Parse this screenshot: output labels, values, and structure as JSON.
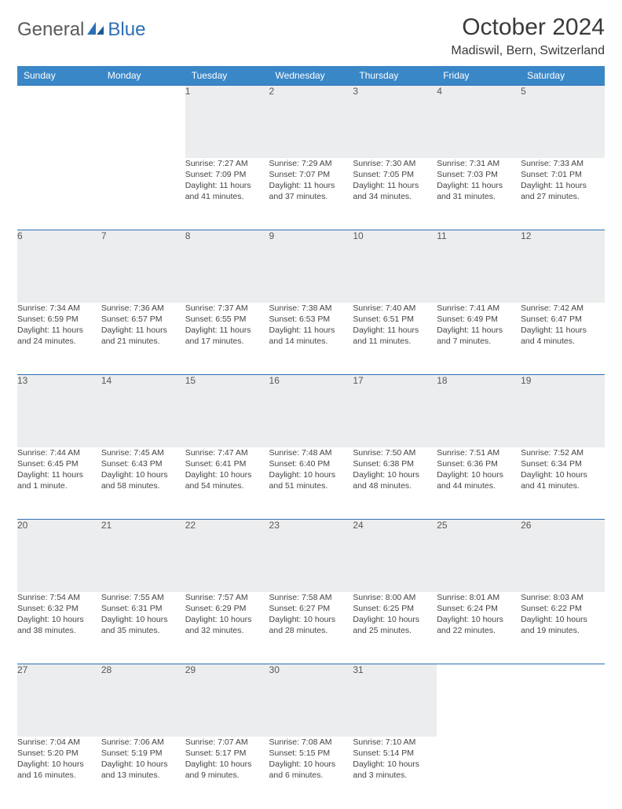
{
  "brand": {
    "part1": "General",
    "part2": "Blue"
  },
  "title": "October 2024",
  "location": "Madiswil, Bern, Switzerland",
  "colors": {
    "header_bg": "#3a87c7",
    "header_text": "#ffffff",
    "daynum_bg": "#ecedee",
    "rule": "#2d6fb5",
    "text": "#3a3a3a",
    "logo_gray": "#5a5a5c",
    "logo_blue": "#2d6fb5"
  },
  "weekdays": [
    "Sunday",
    "Monday",
    "Tuesday",
    "Wednesday",
    "Thursday",
    "Friday",
    "Saturday"
  ],
  "weeks": [
    [
      null,
      null,
      {
        "n": "1",
        "sr": "Sunrise: 7:27 AM",
        "ss": "Sunset: 7:09 PM",
        "d1": "Daylight: 11 hours",
        "d2": "and 41 minutes."
      },
      {
        "n": "2",
        "sr": "Sunrise: 7:29 AM",
        "ss": "Sunset: 7:07 PM",
        "d1": "Daylight: 11 hours",
        "d2": "and 37 minutes."
      },
      {
        "n": "3",
        "sr": "Sunrise: 7:30 AM",
        "ss": "Sunset: 7:05 PM",
        "d1": "Daylight: 11 hours",
        "d2": "and 34 minutes."
      },
      {
        "n": "4",
        "sr": "Sunrise: 7:31 AM",
        "ss": "Sunset: 7:03 PM",
        "d1": "Daylight: 11 hours",
        "d2": "and 31 minutes."
      },
      {
        "n": "5",
        "sr": "Sunrise: 7:33 AM",
        "ss": "Sunset: 7:01 PM",
        "d1": "Daylight: 11 hours",
        "d2": "and 27 minutes."
      }
    ],
    [
      {
        "n": "6",
        "sr": "Sunrise: 7:34 AM",
        "ss": "Sunset: 6:59 PM",
        "d1": "Daylight: 11 hours",
        "d2": "and 24 minutes."
      },
      {
        "n": "7",
        "sr": "Sunrise: 7:36 AM",
        "ss": "Sunset: 6:57 PM",
        "d1": "Daylight: 11 hours",
        "d2": "and 21 minutes."
      },
      {
        "n": "8",
        "sr": "Sunrise: 7:37 AM",
        "ss": "Sunset: 6:55 PM",
        "d1": "Daylight: 11 hours",
        "d2": "and 17 minutes."
      },
      {
        "n": "9",
        "sr": "Sunrise: 7:38 AM",
        "ss": "Sunset: 6:53 PM",
        "d1": "Daylight: 11 hours",
        "d2": "and 14 minutes."
      },
      {
        "n": "10",
        "sr": "Sunrise: 7:40 AM",
        "ss": "Sunset: 6:51 PM",
        "d1": "Daylight: 11 hours",
        "d2": "and 11 minutes."
      },
      {
        "n": "11",
        "sr": "Sunrise: 7:41 AM",
        "ss": "Sunset: 6:49 PM",
        "d1": "Daylight: 11 hours",
        "d2": "and 7 minutes."
      },
      {
        "n": "12",
        "sr": "Sunrise: 7:42 AM",
        "ss": "Sunset: 6:47 PM",
        "d1": "Daylight: 11 hours",
        "d2": "and 4 minutes."
      }
    ],
    [
      {
        "n": "13",
        "sr": "Sunrise: 7:44 AM",
        "ss": "Sunset: 6:45 PM",
        "d1": "Daylight: 11 hours",
        "d2": "and 1 minute."
      },
      {
        "n": "14",
        "sr": "Sunrise: 7:45 AM",
        "ss": "Sunset: 6:43 PM",
        "d1": "Daylight: 10 hours",
        "d2": "and 58 minutes."
      },
      {
        "n": "15",
        "sr": "Sunrise: 7:47 AM",
        "ss": "Sunset: 6:41 PM",
        "d1": "Daylight: 10 hours",
        "d2": "and 54 minutes."
      },
      {
        "n": "16",
        "sr": "Sunrise: 7:48 AM",
        "ss": "Sunset: 6:40 PM",
        "d1": "Daylight: 10 hours",
        "d2": "and 51 minutes."
      },
      {
        "n": "17",
        "sr": "Sunrise: 7:50 AM",
        "ss": "Sunset: 6:38 PM",
        "d1": "Daylight: 10 hours",
        "d2": "and 48 minutes."
      },
      {
        "n": "18",
        "sr": "Sunrise: 7:51 AM",
        "ss": "Sunset: 6:36 PM",
        "d1": "Daylight: 10 hours",
        "d2": "and 44 minutes."
      },
      {
        "n": "19",
        "sr": "Sunrise: 7:52 AM",
        "ss": "Sunset: 6:34 PM",
        "d1": "Daylight: 10 hours",
        "d2": "and 41 minutes."
      }
    ],
    [
      {
        "n": "20",
        "sr": "Sunrise: 7:54 AM",
        "ss": "Sunset: 6:32 PM",
        "d1": "Daylight: 10 hours",
        "d2": "and 38 minutes."
      },
      {
        "n": "21",
        "sr": "Sunrise: 7:55 AM",
        "ss": "Sunset: 6:31 PM",
        "d1": "Daylight: 10 hours",
        "d2": "and 35 minutes."
      },
      {
        "n": "22",
        "sr": "Sunrise: 7:57 AM",
        "ss": "Sunset: 6:29 PM",
        "d1": "Daylight: 10 hours",
        "d2": "and 32 minutes."
      },
      {
        "n": "23",
        "sr": "Sunrise: 7:58 AM",
        "ss": "Sunset: 6:27 PM",
        "d1": "Daylight: 10 hours",
        "d2": "and 28 minutes."
      },
      {
        "n": "24",
        "sr": "Sunrise: 8:00 AM",
        "ss": "Sunset: 6:25 PM",
        "d1": "Daylight: 10 hours",
        "d2": "and 25 minutes."
      },
      {
        "n": "25",
        "sr": "Sunrise: 8:01 AM",
        "ss": "Sunset: 6:24 PM",
        "d1": "Daylight: 10 hours",
        "d2": "and 22 minutes."
      },
      {
        "n": "26",
        "sr": "Sunrise: 8:03 AM",
        "ss": "Sunset: 6:22 PM",
        "d1": "Daylight: 10 hours",
        "d2": "and 19 minutes."
      }
    ],
    [
      {
        "n": "27",
        "sr": "Sunrise: 7:04 AM",
        "ss": "Sunset: 5:20 PM",
        "d1": "Daylight: 10 hours",
        "d2": "and 16 minutes."
      },
      {
        "n": "28",
        "sr": "Sunrise: 7:06 AM",
        "ss": "Sunset: 5:19 PM",
        "d1": "Daylight: 10 hours",
        "d2": "and 13 minutes."
      },
      {
        "n": "29",
        "sr": "Sunrise: 7:07 AM",
        "ss": "Sunset: 5:17 PM",
        "d1": "Daylight: 10 hours",
        "d2": "and 9 minutes."
      },
      {
        "n": "30",
        "sr": "Sunrise: 7:08 AM",
        "ss": "Sunset: 5:15 PM",
        "d1": "Daylight: 10 hours",
        "d2": "and 6 minutes."
      },
      {
        "n": "31",
        "sr": "Sunrise: 7:10 AM",
        "ss": "Sunset: 5:14 PM",
        "d1": "Daylight: 10 hours",
        "d2": "and 3 minutes."
      },
      null,
      null
    ]
  ]
}
